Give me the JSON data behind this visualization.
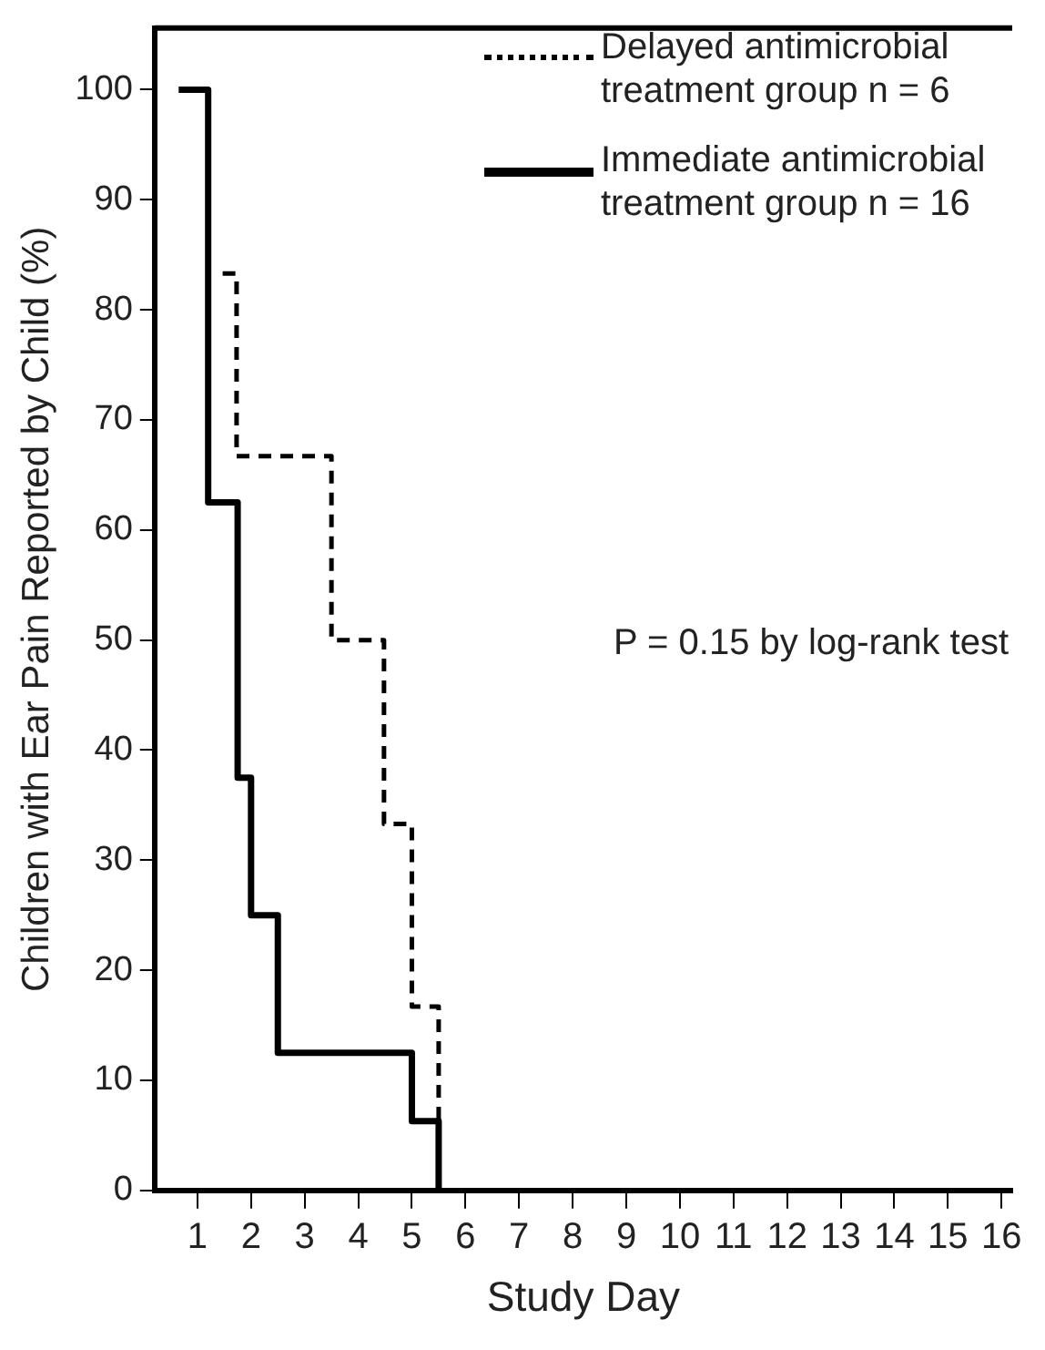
{
  "chart_data": {
    "type": "step",
    "xlabel": "Study Day",
    "ylabel": "Children with Ear Pain Reported by Child (%)",
    "xlim": [
      0.2,
      16.2
    ],
    "xticks": [
      1,
      2,
      3,
      4,
      5,
      6,
      7,
      8,
      9,
      10,
      11,
      12,
      13,
      14,
      15,
      16
    ],
    "ylim": [
      0,
      105.6
    ],
    "yticks": [
      0,
      10,
      20,
      30,
      40,
      50,
      60,
      70,
      80,
      90,
      100
    ],
    "grid": false,
    "legend": "top right",
    "marker": "none",
    "series": [
      {
        "name": "Delayed antimicrobial treatment group n = 6",
        "color": "#000000",
        "line_style": "dashed",
        "x": [
          1.47,
          1.73,
          3.5,
          4.48,
          5,
          5.5
        ],
        "values": [
          83.3,
          66.7,
          50,
          33.3,
          16.7,
          0
        ]
      },
      {
        "name": "Immediate antimicrobial treatment group n = 16",
        "color": "#000000",
        "line_style": "solid",
        "x": [
          0.65,
          1.2,
          1.75,
          2,
          2.5,
          5,
          5.5
        ],
        "values": [
          100,
          62.5,
          37.5,
          25,
          12.5,
          6.3,
          0
        ]
      }
    ],
    "annotations": [
      "P = 0.15 by log-rank test"
    ]
  }
}
